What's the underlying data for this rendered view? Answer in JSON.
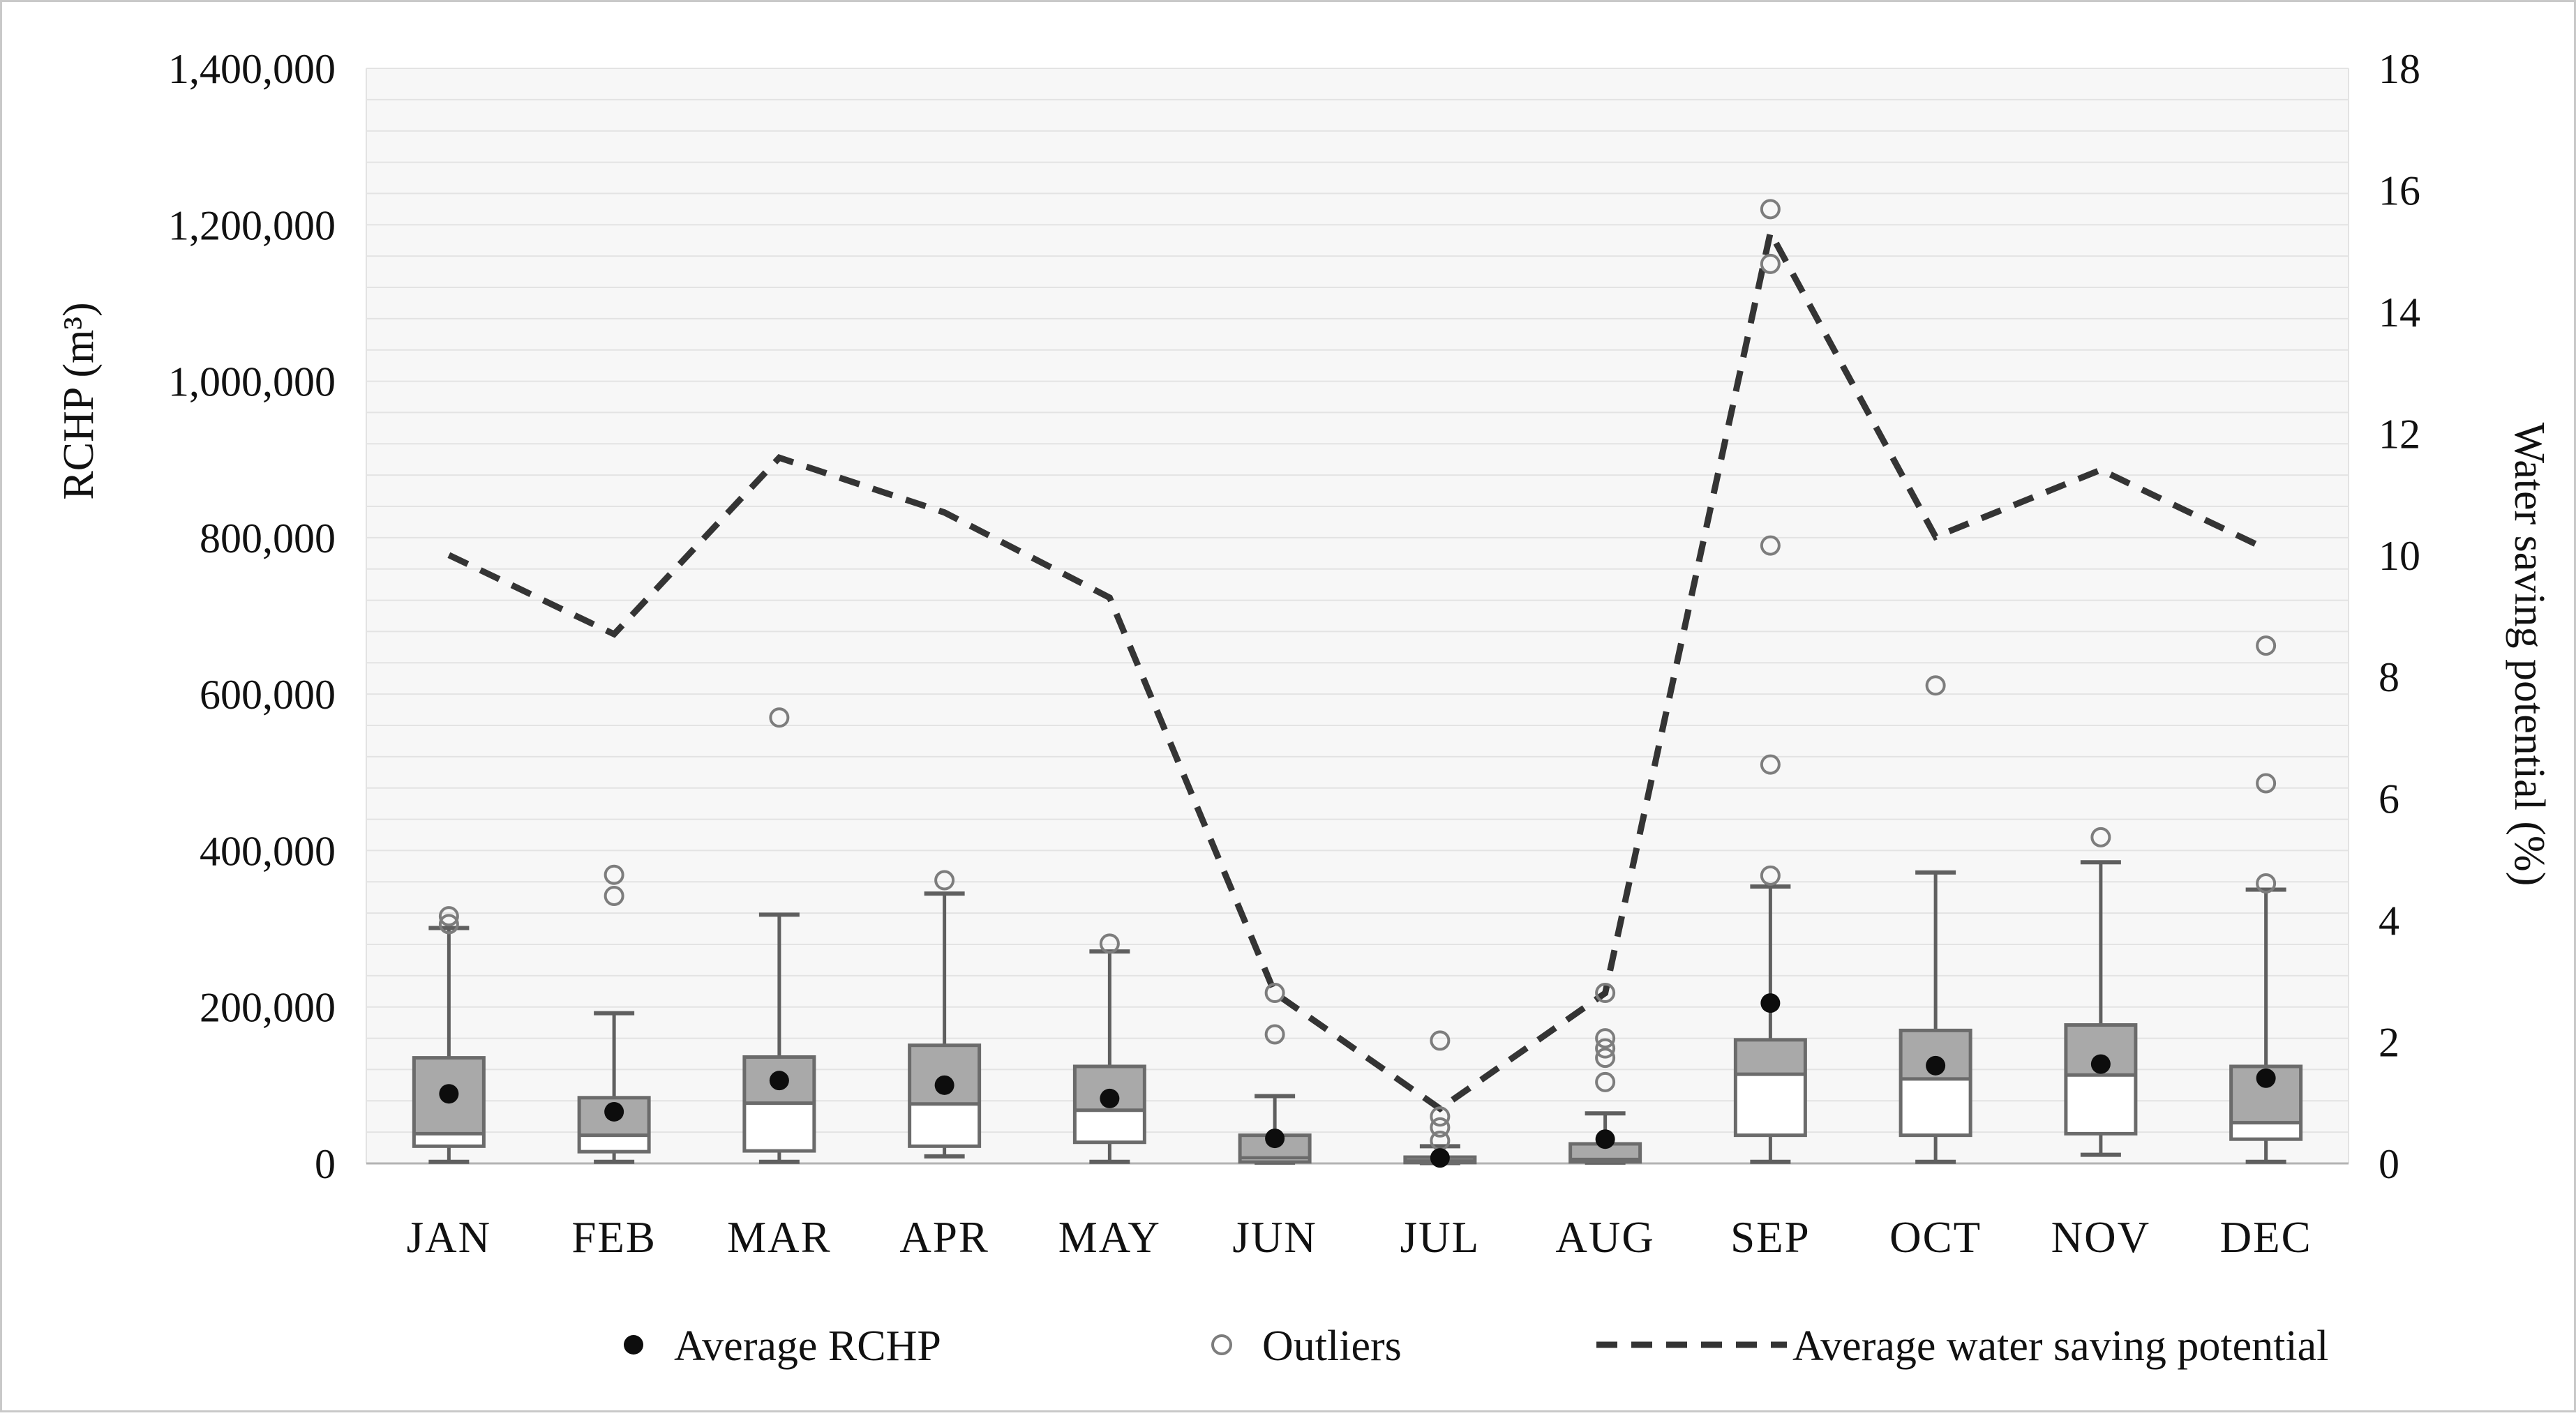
{
  "chart_data": {
    "type": "box",
    "title": "",
    "categories": [
      "JAN",
      "FEB",
      "MAR",
      "APR",
      "MAY",
      "JUN",
      "JUL",
      "AUG",
      "SEP",
      "OCT",
      "NOV",
      "DEC"
    ],
    "left_axis": {
      "label": "RCHP (m³)",
      "min": 0,
      "max": 1400000,
      "tick_step": 200000,
      "minor_gridline_step": 40000,
      "tick_labels": [
        "0",
        "200,000",
        "400,000",
        "600,000",
        "800,000",
        "1,000,000",
        "1,200,000",
        "1,400,000"
      ]
    },
    "right_axis": {
      "label": "Water saving potential (%)",
      "min": 0,
      "max": 18,
      "tick_step": 2,
      "tick_labels": [
        "0",
        "2",
        "4",
        "6",
        "8",
        "10",
        "12",
        "14",
        "16",
        "18"
      ]
    },
    "boxes": [
      {
        "month": "JAN",
        "min": 2000,
        "q1": 22000,
        "median": 38000,
        "mean": 89000,
        "q3": 135000,
        "max": 301000,
        "outliers": [
          316000,
          306000
        ]
      },
      {
        "month": "FEB",
        "min": 2000,
        "q1": 15000,
        "median": 36000,
        "mean": 66000,
        "q3": 84000,
        "max": 192000,
        "outliers": [
          369000,
          342000
        ]
      },
      {
        "month": "MAR",
        "min": 2000,
        "q1": 16000,
        "median": 77000,
        "mean": 106000,
        "q3": 136000,
        "max": 318000,
        "outliers": [
          570000
        ]
      },
      {
        "month": "APR",
        "min": 9000,
        "q1": 22000,
        "median": 76000,
        "mean": 100000,
        "q3": 151000,
        "max": 345000,
        "outliers": [
          362000
        ]
      },
      {
        "month": "MAY",
        "min": 2000,
        "q1": 27000,
        "median": 68000,
        "mean": 83000,
        "q3": 124000,
        "max": 271000,
        "outliers": [
          281000
        ]
      },
      {
        "month": "JUN",
        "min": 1000,
        "q1": 2000,
        "median": 7000,
        "mean": 32000,
        "q3": 36000,
        "max": 86000,
        "outliers": [
          218000,
          165000
        ]
      },
      {
        "month": "JUL",
        "min": 500,
        "q1": 1000,
        "median": 3000,
        "mean": 7000,
        "q3": 8000,
        "max": 22000,
        "outliers": [
          157000,
          60000,
          46000,
          29000
        ]
      },
      {
        "month": "AUG",
        "min": 1000,
        "q1": 2000,
        "median": 5000,
        "mean": 31000,
        "q3": 25000,
        "max": 64000,
        "outliers": [
          218000,
          160000,
          147000,
          135000,
          104000
        ]
      },
      {
        "month": "SEP",
        "min": 2000,
        "q1": 36000,
        "median": 114000,
        "mean": 205000,
        "q3": 158000,
        "max": 354000,
        "outliers": [
          1220000,
          1150000,
          790000,
          510000,
          368000
        ]
      },
      {
        "month": "OCT",
        "min": 2000,
        "q1": 36000,
        "median": 108000,
        "mean": 125000,
        "q3": 170000,
        "max": 372000,
        "outliers": [
          611000
        ]
      },
      {
        "month": "NOV",
        "min": 11000,
        "q1": 38000,
        "median": 113000,
        "mean": 127000,
        "q3": 177000,
        "max": 385000,
        "outliers": [
          417000
        ]
      },
      {
        "month": "DEC",
        "min": 2000,
        "q1": 31000,
        "median": 52000,
        "mean": 109000,
        "q3": 124000,
        "max": 350000,
        "outliers": [
          662000,
          486000,
          358000
        ]
      }
    ],
    "series": [
      {
        "name": "Average water saving potential",
        "axis": "right",
        "type": "dashed-line",
        "values": [
          10.0,
          8.7,
          11.6,
          10.7,
          9.3,
          2.8,
          0.9,
          2.8,
          15.3,
          10.3,
          11.4,
          10.1
        ]
      }
    ],
    "legend": [
      {
        "marker": "black-dot",
        "label": "Average RCHP"
      },
      {
        "marker": "open-circle",
        "label": "Outliers"
      },
      {
        "marker": "dashed-line",
        "label": "Average water saving potential"
      }
    ],
    "legend_position": "bottom",
    "grid": "horizontal-minor",
    "colors": {
      "box_upper_fill": "#a9a9a9",
      "box_lower_fill": "#ffffff",
      "box_border": "#6b6b6b",
      "whisker": "#5f5f5f",
      "mean_dot": "#0d0d0d",
      "outlier_stroke": "#7d7d7d",
      "dashed_line": "#343434",
      "gridline": "#e3e3e3",
      "axis_line": "#b3b3b3",
      "plot_background": "#f7f7f7",
      "text": "#111111"
    }
  }
}
